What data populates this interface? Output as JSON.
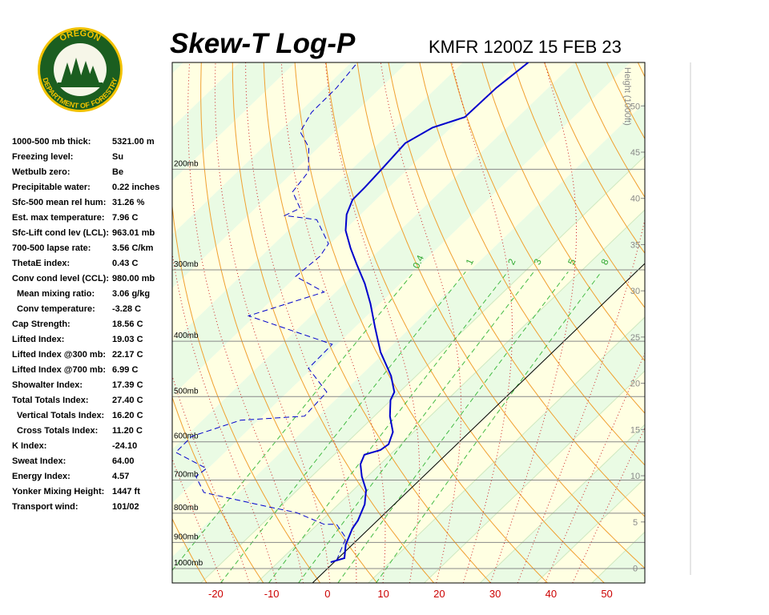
{
  "header": {
    "title": "Skew-T Log-P",
    "station": "KMFR 1200Z 15 FEB 23"
  },
  "logo": {
    "top": "OREGON",
    "bottom": "DEPARTMENT OF FORESTRY"
  },
  "indices": [
    {
      "label": "1000-500 mb thick:",
      "value": "5321.00 m"
    },
    {
      "label": "Freezing level:",
      "value": "Su"
    },
    {
      "label": "Wetbulb zero:",
      "value": "Be"
    },
    {
      "label": "Precipitable water:",
      "value": "0.22 inches"
    },
    {
      "label": "Sfc-500 mean rel hum:",
      "value": "31.26 %"
    },
    {
      "label": "Est. max temperature:",
      "value": "7.96 C"
    },
    {
      "label": "Sfc-Lift cond lev (LCL):",
      "value": "963.01 mb"
    },
    {
      "label": "700-500 lapse rate:",
      "value": "3.56 C/km"
    },
    {
      "label": "ThetaE index:",
      "value": "0.43 C"
    },
    {
      "label": "Conv cond level (CCL):",
      "value": "980.00 mb"
    },
    {
      "label": "Mean mixing ratio:",
      "value": "3.06 g/kg"
    },
    {
      "label": "Conv temperature:",
      "value": "-3.28 C"
    },
    {
      "label": "Cap Strength:",
      "value": "18.56 C"
    },
    {
      "label": "Lifted Index:",
      "value": "19.03 C"
    },
    {
      "label": "Lifted Index @300 mb:",
      "value": "22.17 C"
    },
    {
      "label": "Lifted Index @700 mb:",
      "value": "6.99 C"
    },
    {
      "label": "Showalter Index:",
      "value": "17.39 C"
    },
    {
      "label": "Total Totals Index:",
      "value": "27.40 C"
    },
    {
      "label": "Vertical Totals Index:",
      "value": "16.20 C"
    },
    {
      "label": "Cross Totals Index:",
      "value": "11.20 C"
    },
    {
      "label": "K Index:",
      "value": "-24.10"
    },
    {
      "label": "Sweat Index:",
      "value": "64.00"
    },
    {
      "label": "Energy Index:",
      "value": "4.57"
    },
    {
      "label": "Yonker Mixing Height:",
      "value": "1447 ft"
    },
    {
      "label": "Transport wind:",
      "value": "101/02"
    }
  ],
  "chart_data": {
    "type": "skew-t",
    "ylim": [
      1060,
      130
    ],
    "log_y": true,
    "yticks": [
      {
        "value": 1000,
        "label": "1000mb"
      },
      {
        "value": 900,
        "label": "900mb"
      },
      {
        "value": 800,
        "label": "800mb"
      },
      {
        "value": 700,
        "label": "700mb"
      },
      {
        "value": 600,
        "label": "600mb"
      },
      {
        "value": 500,
        "label": "500mb"
      },
      {
        "value": 400,
        "label": "400mb"
      },
      {
        "value": 300,
        "label": "300mb"
      },
      {
        "value": 200,
        "label": "200mb"
      }
    ],
    "xlim": [
      -27.8,
      56.8
    ],
    "xticks": [
      -20,
      -10,
      0,
      10,
      20,
      30,
      40,
      50
    ],
    "y2label": "Height (1000ft)",
    "y2lim": [
      -1.6,
      54.7
    ],
    "y2ticks": [
      0,
      5,
      10,
      15,
      20,
      25,
      30,
      35,
      40,
      45,
      50
    ],
    "mixing_ratios": [
      0.4,
      1,
      2,
      3,
      5,
      8
    ],
    "series": [
      {
        "color": "#0000cc",
        "style": "solid",
        "pressure": [
          975,
          959,
          908,
          851,
          824,
          772,
          729,
          690,
          657,
          632,
          620,
          606,
          577,
          541,
          507,
          491,
          460,
          418,
          379,
          344,
          317,
          293,
          275,
          256,
          240,
          226,
          215,
          199,
          180,
          169,
          162,
          144,
          130
        ],
        "values": [
          -0.6,
          1.1,
          -1.2,
          -3.0,
          -3.5,
          -5.3,
          -7.7,
          -11.0,
          -13.5,
          -14.6,
          -12.6,
          -12.2,
          -13.7,
          -17.2,
          -20.1,
          -20.9,
          -24.5,
          -30.8,
          -36.3,
          -41.6,
          -46.4,
          -51.5,
          -55.5,
          -59.7,
          -62.5,
          -64.2,
          -64.3,
          -64.7,
          -65.3,
          -63.3,
          -59.5,
          -59.3,
          -58.3
        ]
      },
      {
        "color": "#0000cc",
        "style": "dashed",
        "pressure": [
          968,
          884,
          837,
          837,
          798,
          777,
          736,
          690,
          668,
          626,
          587,
          550,
          541,
          491,
          446,
          405,
          361,
          328,
          308,
          284,
          270,
          245,
          241,
          234,
          219,
          202,
          183,
          172,
          159,
          144,
          131
        ],
        "values": [
          0.1,
          -2.4,
          -6.6,
          -8.8,
          -16.0,
          -23.0,
          -36.3,
          -40.7,
          -40.3,
          -48.8,
          -48.9,
          -43.2,
          -32.5,
          -33.0,
          -40.7,
          -40.9,
          -61.2,
          -52.1,
          -60.1,
          -59.5,
          -60.3,
          -66.9,
          -73.4,
          -72.0,
          -76.4,
          -77.3,
          -81.8,
          -86.2,
          -87.8,
          -87.9,
          -88.8
        ]
      }
    ]
  }
}
